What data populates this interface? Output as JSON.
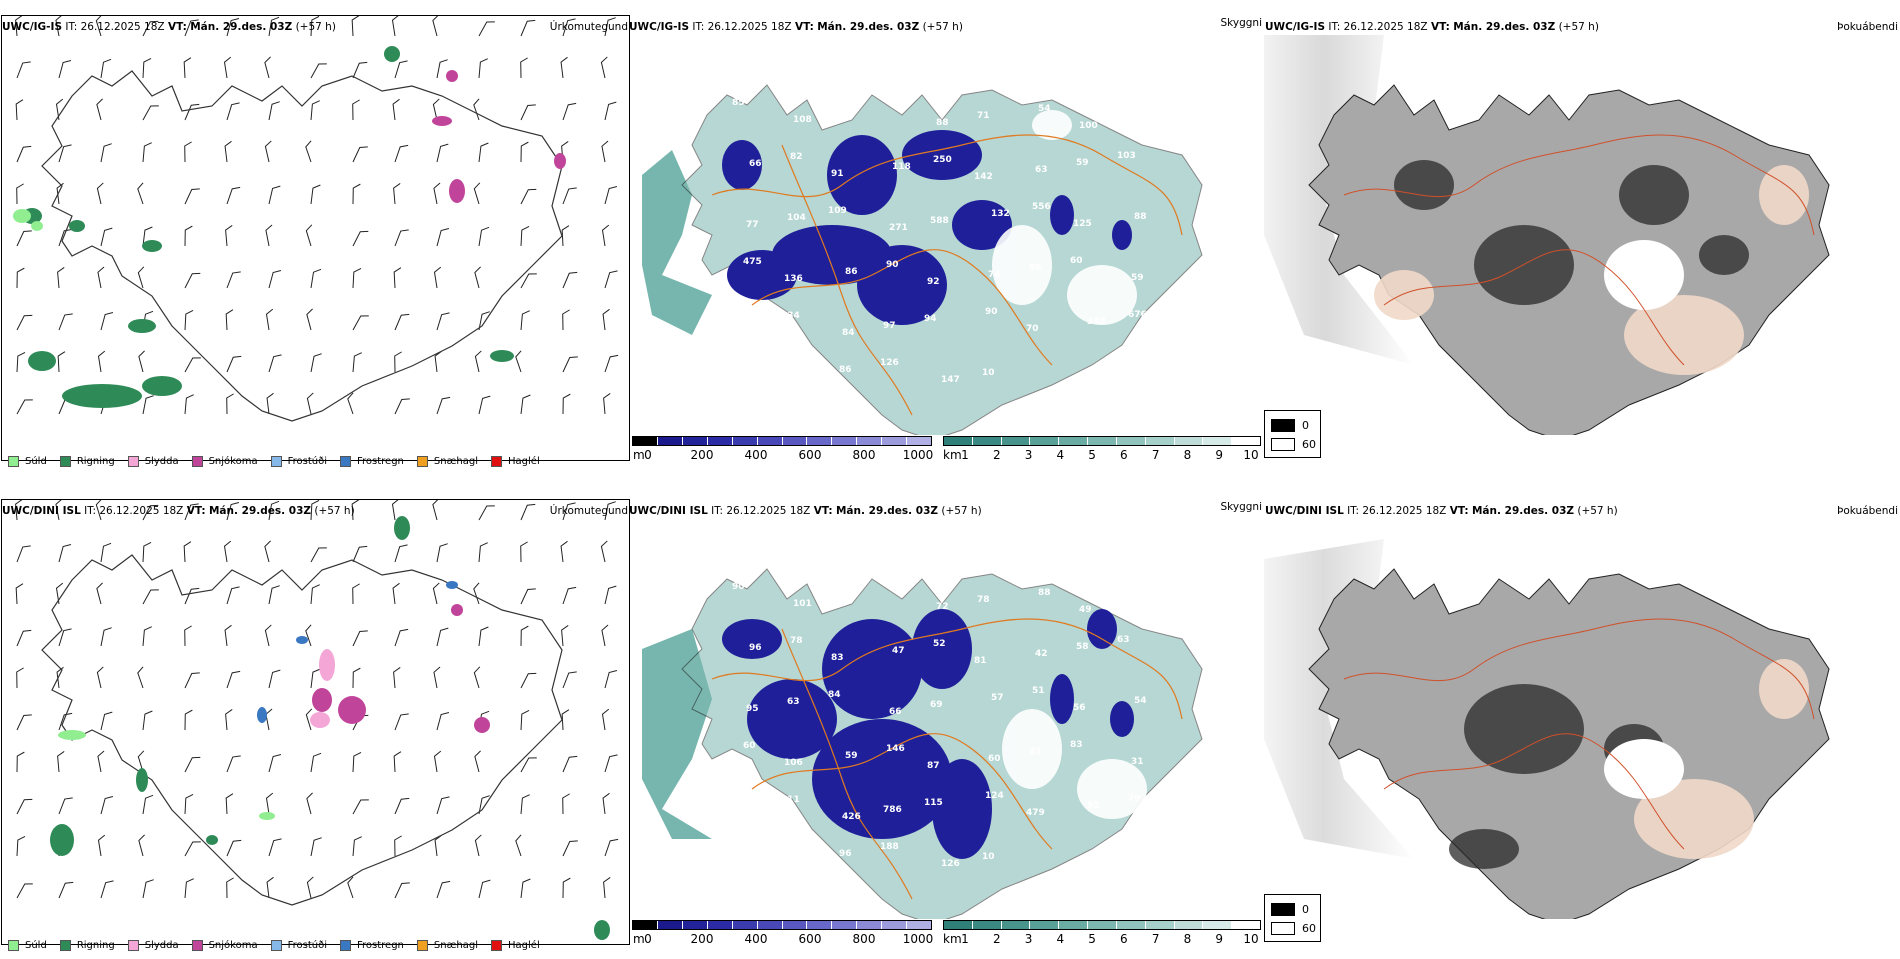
{
  "rows": [
    {
      "model": "UWC/IG-IS",
      "it": "IT: 26.12.2025 18Z",
      "vt_label": "VT:",
      "vt": "Mán. 29.des. 03Z",
      "lead": "(+57 h)",
      "labels": {
        "precip": "Úrkomutegund",
        "vis": "Skyggni",
        "fog": "Þokuábendi"
      },
      "vis_numbers": [
        "85",
        "108",
        "636",
        "78",
        "88",
        "71",
        "54",
        "100",
        "59",
        "66",
        "82",
        "91",
        "118",
        "250",
        "142",
        "63",
        "59",
        "103",
        "77",
        "104",
        "109",
        "271",
        "588",
        "132",
        "556",
        "125",
        "88",
        "475",
        "136",
        "86",
        "90",
        "92",
        "74",
        "86",
        "60",
        "59",
        "152",
        "234",
        "84",
        "97",
        "94",
        "90",
        "70",
        "348",
        "676",
        "421",
        "184",
        "86",
        "126",
        "147",
        "10"
      ]
    },
    {
      "model": "UWC/DINI ISL",
      "it": "IT: 26.12.2025 18Z",
      "vt_label": "VT:",
      "vt": "Mán. 29.des. 03Z",
      "lead": "(+57 h)",
      "labels": {
        "precip": "Úrkomutegund",
        "vis": "Skyggni",
        "fog": "Þokuábendi"
      },
      "vis_numbers": [
        "90",
        "101",
        "177",
        "58",
        "72",
        "78",
        "88",
        "49",
        "56",
        "96",
        "78",
        "83",
        "47",
        "52",
        "81",
        "42",
        "58",
        "63",
        "95",
        "63",
        "84",
        "66",
        "69",
        "57",
        "51",
        "56",
        "54",
        "60",
        "106",
        "59",
        "146",
        "87",
        "60",
        "63",
        "83",
        "31",
        "149",
        "111",
        "426",
        "786",
        "115",
        "124",
        "479",
        "92",
        "79",
        "105",
        "73",
        "96",
        "188",
        "126",
        "10"
      ]
    }
  ],
  "precip_legend": [
    {
      "label": "Súld",
      "color": "#90ee90"
    },
    {
      "label": "Rigning",
      "color": "#2e8b57"
    },
    {
      "label": "Slydda",
      "color": "#f4a6d7"
    },
    {
      "label": "Snjókoma",
      "color": "#c0449a"
    },
    {
      "label": "Frostúði",
      "color": "#87b8ea"
    },
    {
      "label": "Frostregn",
      "color": "#3a78c2"
    },
    {
      "label": "Snæhagl",
      "color": "#f0a020"
    },
    {
      "label": "Haglél",
      "color": "#e01010"
    }
  ],
  "height_bar": {
    "unit": "m",
    "ticks": [
      "0",
      "200",
      "400",
      "600",
      "800",
      "1000"
    ],
    "colors": [
      "#000000",
      "#1a1a8c",
      "#232399",
      "#2b2ba6",
      "#3b3bb0",
      "#4848b8",
      "#5858c0",
      "#6868c8",
      "#7878d0",
      "#8a8ad6",
      "#9c9cdc",
      "#b0b0e4"
    ]
  },
  "vis_bar": {
    "unit": "km",
    "ticks": [
      "1",
      "2",
      "3",
      "4",
      "5",
      "6",
      "7",
      "8",
      "9",
      "10"
    ],
    "colors": [
      "#2e8079",
      "#3a8a83",
      "#48948d",
      "#58a098",
      "#6aaca4",
      "#7cb8b0",
      "#90c4bc",
      "#a6d0ca",
      "#bedcd8",
      "#d6ebe8",
      "#ffffff"
    ]
  },
  "fog_legend": {
    "high": "0",
    "low": "60"
  },
  "colors": {
    "rain": "#2e8b57",
    "drizzle": "#90ee90",
    "snow": "#c0449a",
    "vis_teal": "#5fa9a0",
    "vis_blue": "#1f1f9a",
    "road": "#e07a20"
  }
}
